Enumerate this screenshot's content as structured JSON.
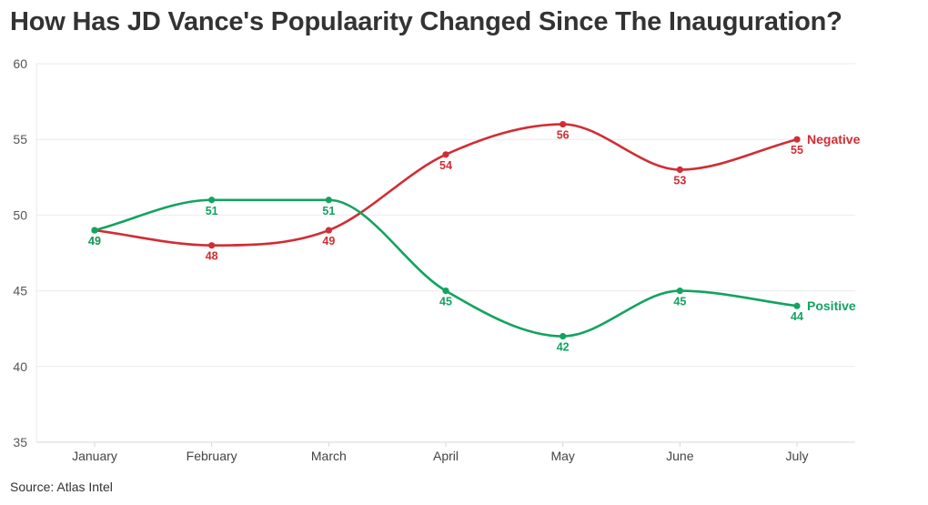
{
  "title": "How Has JD Vance's Populaarity Changed Since The Inauguration?",
  "source": "Source: Atlas Intel",
  "chart_data": {
    "type": "line",
    "title": "How Has JD Vance's Populaarity Changed Since The Inauguration?",
    "categories": [
      "January",
      "February",
      "March",
      "April",
      "May",
      "June",
      "July"
    ],
    "ylim": [
      35,
      60
    ],
    "yticks": [
      35,
      40,
      45,
      50,
      55,
      60
    ],
    "grid": true,
    "series": [
      {
        "name": "Negative",
        "color": "#d12d34",
        "values": [
          49,
          48,
          49,
          54,
          56,
          53,
          55
        ]
      },
      {
        "name": "Positive",
        "color": "#13a360",
        "values": [
          49,
          51,
          51,
          45,
          42,
          45,
          44
        ]
      }
    ]
  }
}
